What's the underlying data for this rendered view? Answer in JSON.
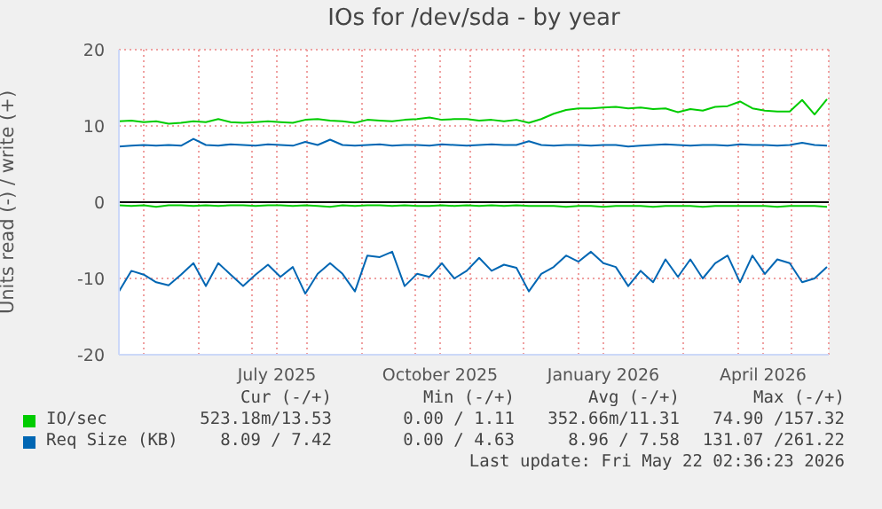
{
  "chart_data": {
    "type": "line",
    "title": "IOs for /dev/sda - by year",
    "ylabel": "Units read (-) / write (+)",
    "x": [
      "2025-04-17",
      "2025-04-24",
      "2025-05-01",
      "2025-05-08",
      "2025-05-15",
      "2025-05-22",
      "2025-05-29",
      "2025-06-05",
      "2025-06-12",
      "2025-06-19",
      "2025-06-26",
      "2025-07-03",
      "2025-07-10",
      "2025-07-17",
      "2025-07-24",
      "2025-07-31",
      "2025-08-07",
      "2025-08-14",
      "2025-08-21",
      "2025-08-28",
      "2025-09-04",
      "2025-09-11",
      "2025-09-18",
      "2025-09-25",
      "2025-10-02",
      "2025-10-09",
      "2025-10-16",
      "2025-10-23",
      "2025-10-30",
      "2025-11-06",
      "2025-11-13",
      "2025-11-20",
      "2025-11-27",
      "2025-12-04",
      "2025-12-11",
      "2025-12-18",
      "2025-12-25",
      "2026-01-01",
      "2026-01-08",
      "2026-01-15",
      "2026-01-22",
      "2026-01-29",
      "2026-02-05",
      "2026-02-12",
      "2026-02-19",
      "2026-02-26",
      "2026-03-05",
      "2026-03-12",
      "2026-03-19",
      "2026-03-26",
      "2026-04-02",
      "2026-04-09",
      "2026-04-16",
      "2026-04-23",
      "2026-04-30",
      "2026-05-07",
      "2026-05-14",
      "2026-05-21"
    ],
    "series": [
      {
        "name": "IO/sec",
        "color": "#00cc00",
        "values": [
          10.6,
          10.7,
          10.5,
          10.6,
          10.3,
          10.4,
          10.6,
          10.5,
          10.9,
          10.5,
          10.4,
          10.5,
          10.6,
          10.5,
          10.4,
          10.8,
          10.9,
          10.7,
          10.6,
          10.4,
          10.8,
          10.7,
          10.6,
          10.8,
          10.9,
          11.1,
          10.8,
          10.9,
          10.9,
          10.7,
          10.8,
          10.6,
          10.8,
          10.4,
          10.9,
          11.6,
          12.1,
          12.3,
          12.3,
          12.4,
          12.5,
          12.3,
          12.4,
          12.2,
          12.3,
          11.8,
          12.2,
          12.0,
          12.5,
          12.6,
          13.2,
          12.3,
          12.0,
          11.9,
          11.9,
          13.4,
          11.5,
          13.5
        ]
      },
      {
        "name": "Req Size (KB)",
        "color": "#0066b3",
        "values": [
          7.3,
          7.4,
          7.5,
          7.4,
          7.5,
          7.4,
          8.3,
          7.5,
          7.4,
          7.6,
          7.5,
          7.4,
          7.6,
          7.5,
          7.4,
          7.9,
          7.5,
          8.2,
          7.5,
          7.4,
          7.5,
          7.6,
          7.4,
          7.5,
          7.5,
          7.4,
          7.6,
          7.5,
          7.4,
          7.5,
          7.6,
          7.5,
          7.5,
          8.0,
          7.5,
          7.4,
          7.5,
          7.5,
          7.4,
          7.5,
          7.5,
          7.3,
          7.4,
          7.5,
          7.6,
          7.5,
          7.4,
          7.5,
          7.5,
          7.4,
          7.6,
          7.5,
          7.5,
          7.4,
          7.5,
          7.8,
          7.5,
          7.4
        ]
      },
      {
        "color": "#00cc00",
        "values": [
          -0.4,
          -0.5,
          -0.4,
          -0.6,
          -0.4,
          -0.4,
          -0.5,
          -0.4,
          -0.5,
          -0.4,
          -0.4,
          -0.5,
          -0.4,
          -0.4,
          -0.5,
          -0.4,
          -0.5,
          -0.6,
          -0.4,
          -0.5,
          -0.4,
          -0.4,
          -0.5,
          -0.4,
          -0.5,
          -0.5,
          -0.4,
          -0.5,
          -0.4,
          -0.5,
          -0.4,
          -0.5,
          -0.4,
          -0.5,
          -0.5,
          -0.5,
          -0.6,
          -0.5,
          -0.5,
          -0.6,
          -0.5,
          -0.5,
          -0.5,
          -0.6,
          -0.5,
          -0.5,
          -0.5,
          -0.6,
          -0.5,
          -0.5,
          -0.5,
          -0.5,
          -0.5,
          -0.6,
          -0.5,
          -0.5,
          -0.5,
          -0.6
        ]
      },
      {
        "color": "#0066b3",
        "values": [
          -11.7,
          -9,
          -9.5,
          -10.5,
          -10.9,
          -9.5,
          -8,
          -11,
          -8,
          -9.5,
          -11,
          -9.5,
          -8.2,
          -9.8,
          -8.5,
          -12,
          -9.4,
          -8,
          -9.4,
          -11.7,
          -7,
          -7.2,
          -6.5,
          -11,
          -9.4,
          -9.8,
          -8,
          -10,
          -9,
          -7.3,
          -9,
          -8.2,
          -8.6,
          -11.7,
          -9.4,
          -8.5,
          -7,
          -7.8,
          -6.5,
          -8,
          -8.5,
          -11,
          -9,
          -10.5,
          -7.5,
          -9.8,
          -7.5,
          -10,
          -8,
          -7,
          -10.5,
          -7,
          -9.4,
          -7.5,
          -8,
          -10.5,
          -10,
          -8.5
        ]
      }
    ],
    "xlim": [
      "2025-04-17",
      "2026-05-22"
    ],
    "xticks": [
      {
        "value": "2025-05-01",
        "label": null
      },
      {
        "value": "2025-06-01",
        "label": null
      },
      {
        "value": "2025-07-01",
        "label": null
      },
      {
        "value": "2025-07-15",
        "label": "July 2025"
      },
      {
        "value": "2025-08-01",
        "label": null
      },
      {
        "value": "2025-09-01",
        "label": null
      },
      {
        "value": "2025-10-01",
        "label": null
      },
      {
        "value": "2025-10-15",
        "label": "October 2025"
      },
      {
        "value": "2025-11-01",
        "label": null
      },
      {
        "value": "2025-12-01",
        "label": null
      },
      {
        "value": "2026-01-01",
        "label": null
      },
      {
        "value": "2026-01-15",
        "label": "January 2026"
      },
      {
        "value": "2026-02-01",
        "label": null
      },
      {
        "value": "2026-03-01",
        "label": null
      },
      {
        "value": "2026-04-01",
        "label": null
      },
      {
        "value": "2026-04-15",
        "label": "April 2026"
      },
      {
        "value": "2026-05-01",
        "label": null
      }
    ],
    "ylim": [
      -20,
      20
    ],
    "yticks": [
      -20,
      -10,
      0,
      10,
      20
    ],
    "ref_lines": [
      {
        "axis": "y",
        "value": 0,
        "color": "#000000"
      }
    ],
    "grid": true,
    "legend": "bottom left",
    "marker": "none",
    "line_style": "solid",
    "annotations": [
      "Cur (-/+)",
      "Min (-/+)",
      "Avg (-/+)",
      "Max (-/+)",
      "523.18m/13.53",
      "0.00 / 1.11",
      "352.66m/11.31",
      "74.90 /157.32",
      "8.09 / 7.42",
      "0.00 / 4.63",
      "8.96 / 7.58",
      "131.07 /261.22",
      "Last update: Fri May 22 02:36:23 2026"
    ]
  }
}
